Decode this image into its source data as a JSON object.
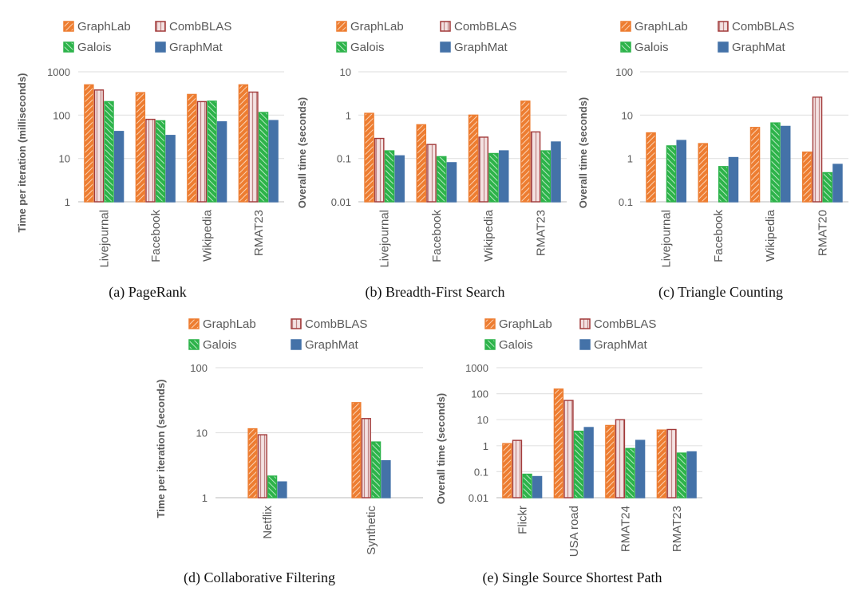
{
  "colors": {
    "GraphLab": "#ED7D31",
    "CombBLAS": "#A23A3A",
    "CombBLAS_fill": "#E9C6C6",
    "Galois": "#2DB34A",
    "Galois_fill": "#9BE0A8",
    "GraphMat": "#4472A8"
  },
  "legend": [
    "GraphLab",
    "CombBLAS",
    "Galois",
    "GraphMat"
  ],
  "chart_data": [
    {
      "id": "a",
      "type": "bar",
      "scale": "log",
      "title": "(a) PageRank",
      "xlabel": "",
      "ylabel": "Time per iteration (milliseconds)",
      "ylim": [
        1,
        1000
      ],
      "yticks": [
        "1",
        "10",
        "100",
        "1000"
      ],
      "legend_position": "top",
      "grid": true,
      "categories": [
        "Livejournal",
        "Facebook",
        "Wikipedia",
        "RMAT23"
      ],
      "series": [
        {
          "name": "GraphLab",
          "values": [
            500,
            330,
            300,
            500
          ]
        },
        {
          "name": "CombBLAS",
          "values": [
            380,
            80,
            205,
            340
          ]
        },
        {
          "name": "Galois",
          "values": [
            205,
            74,
            210,
            115
          ]
        },
        {
          "name": "GraphMat",
          "values": [
            42,
            34,
            70,
            75
          ]
        }
      ]
    },
    {
      "id": "b",
      "type": "bar",
      "scale": "log",
      "title": "(b) Breadth-First Search",
      "xlabel": "",
      "ylabel": "Overall time (seconds)",
      "ylim": [
        0.01,
        10
      ],
      "yticks": [
        "0.01",
        "0.1",
        "1",
        "10"
      ],
      "legend_position": "top",
      "grid": true,
      "categories": [
        "Livejournal",
        "Facebook",
        "Wikipedia",
        "RMAT23"
      ],
      "series": [
        {
          "name": "GraphLab",
          "values": [
            1.1,
            0.6,
            1.0,
            2.1
          ]
        },
        {
          "name": "CombBLAS",
          "values": [
            0.29,
            0.21,
            0.31,
            0.41
          ]
        },
        {
          "name": "Galois",
          "values": [
            0.15,
            0.11,
            0.13,
            0.15
          ]
        },
        {
          "name": "GraphMat",
          "values": [
            0.115,
            0.08,
            0.15,
            0.24
          ]
        }
      ]
    },
    {
      "id": "c",
      "type": "bar",
      "scale": "log",
      "title": "(c) Triangle Counting",
      "xlabel": "",
      "ylabel": "Overall time (seconds)",
      "ylim": [
        0.1,
        100
      ],
      "yticks": [
        "0.1",
        "1",
        "10",
        "100"
      ],
      "legend_position": "top",
      "grid": true,
      "categories": [
        "Livejournal",
        "Facebook",
        "Wikipedia",
        "RMAT20"
      ],
      "series": [
        {
          "name": "GraphLab",
          "values": [
            3.9,
            2.2,
            5.2,
            1.4
          ]
        },
        {
          "name": "CombBLAS",
          "values": [
            null,
            null,
            null,
            26
          ]
        },
        {
          "name": "Galois",
          "values": [
            1.95,
            0.65,
            6.6,
            0.47
          ]
        },
        {
          "name": "GraphMat",
          "values": [
            2.6,
            1.05,
            5.5,
            0.73
          ]
        }
      ]
    },
    {
      "id": "d",
      "type": "bar",
      "scale": "log",
      "title": "(d) Collaborative Filtering",
      "xlabel": "",
      "ylabel": "Time per iteration (seconds)",
      "ylim": [
        1,
        100
      ],
      "yticks": [
        "1",
        "10",
        "100"
      ],
      "legend_position": "top",
      "grid": true,
      "categories": [
        "Netflix",
        "Synthetic"
      ],
      "series": [
        {
          "name": "GraphLab",
          "values": [
            11.5,
            29
          ]
        },
        {
          "name": "CombBLAS",
          "values": [
            9.3,
            16.5
          ]
        },
        {
          "name": "Galois",
          "values": [
            2.15,
            7.2
          ]
        },
        {
          "name": "GraphMat",
          "values": [
            1.75,
            3.7
          ]
        }
      ]
    },
    {
      "id": "e",
      "type": "bar",
      "scale": "log",
      "title": "(e) Single Source Shortest Path",
      "xlabel": "",
      "ylabel": "Overall time (seconds)",
      "ylim": [
        0.01,
        1000
      ],
      "yticks": [
        "0.01",
        "0.1",
        "1",
        "10",
        "100",
        "1000"
      ],
      "legend_position": "top",
      "grid": true,
      "categories": [
        "Flickr",
        "USA road",
        "RMAT24",
        "RMAT23"
      ],
      "series": [
        {
          "name": "GraphLab",
          "values": [
            1.2,
            150,
            6.0,
            4.0
          ]
        },
        {
          "name": "CombBLAS",
          "values": [
            1.6,
            55,
            10,
            4.2
          ]
        },
        {
          "name": "Galois",
          "values": [
            0.08,
            3.6,
            0.78,
            0.52
          ]
        },
        {
          "name": "GraphMat",
          "values": [
            0.065,
            5.0,
            1.6,
            0.58
          ]
        }
      ]
    }
  ]
}
